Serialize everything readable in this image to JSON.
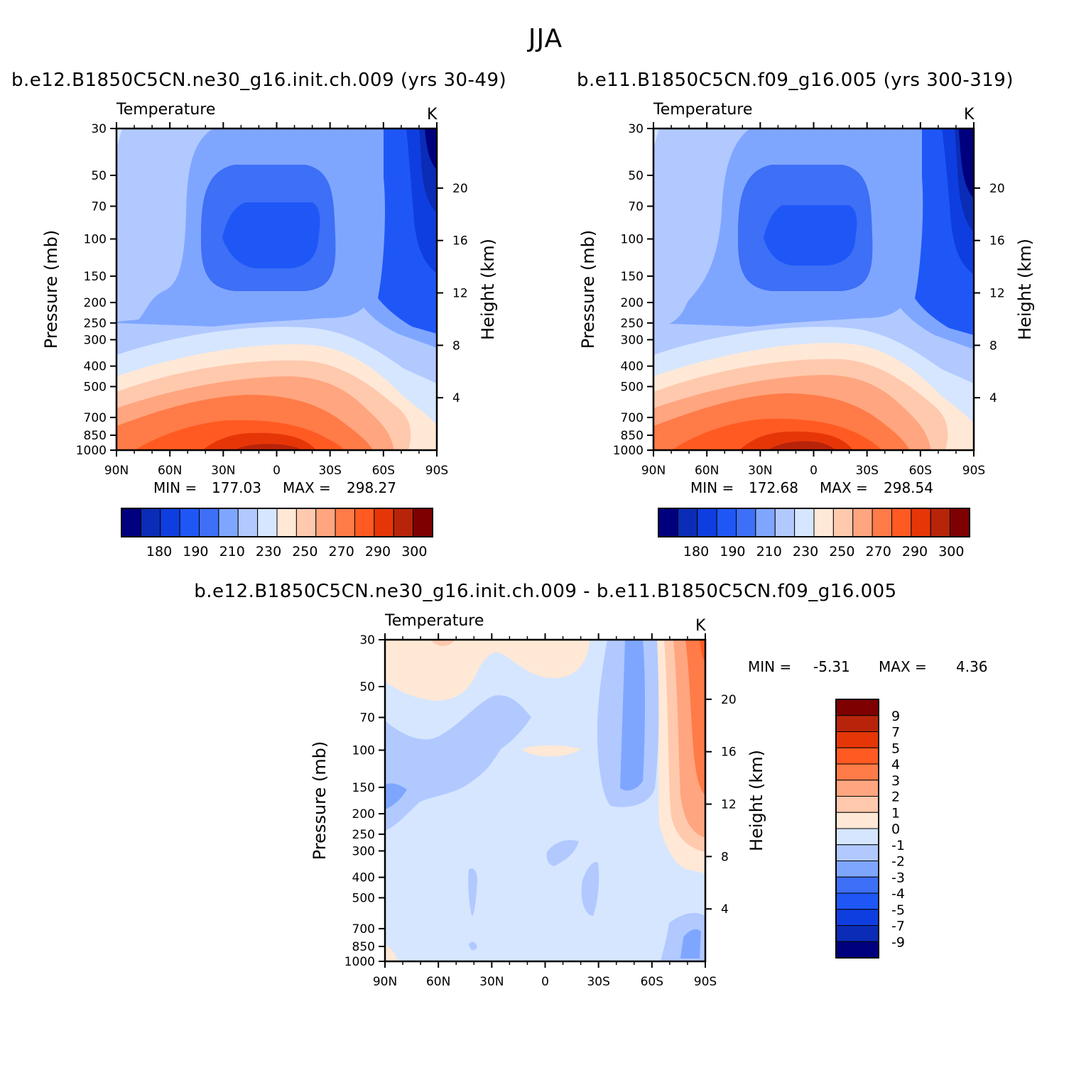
{
  "page": {
    "title": "JJA",
    "panels": [
      {
        "title": "b.e12.B1850C5CN.ne30_g16.init.ch.009 (yrs 30-49)",
        "variable": "Temperature",
        "units": "K",
        "min_label": "MIN =",
        "min": "177.03",
        "max_label": "MAX =",
        "max": "298.27"
      },
      {
        "title": "b.e11.B1850C5CN.f09_g16.005 (yrs 300-319)",
        "variable": "Temperature",
        "units": "K",
        "min_label": "MIN =",
        "min": "172.68",
        "max_label": "MAX =",
        "max": "298.54"
      },
      {
        "title": "b.e12.B1850C5CN.ne30_g16.init.ch.009 - b.e11.B1850C5CN.f09_g16.005",
        "variable": "Temperature",
        "units": "K",
        "min_label": "MIN =",
        "min": "-5.31",
        "max_label": "MAX =",
        "max": "4.36"
      }
    ]
  },
  "chart_data": [
    {
      "type": "heatmap",
      "title": "b.e12.B1850C5CN.ne30_g16.init.ch.009 (yrs 30-49)",
      "subtitle": "Temperature",
      "units": "K",
      "xlabel": "",
      "ylabel": "Pressure (mb)",
      "y2label": "Height (km)",
      "x_tick_labels": [
        "90N",
        "60N",
        "30N",
        "0",
        "30S",
        "60S",
        "90S"
      ],
      "y_tick_labels": [
        "30",
        "50",
        "70",
        "100",
        "150",
        "200",
        "250",
        "300",
        "400",
        "500",
        "700",
        "850",
        "1000"
      ],
      "y2_tick_labels": [
        "20",
        "16",
        "12",
        "8",
        "4"
      ],
      "yscale": "log",
      "colorbar_levels": [
        180,
        190,
        210,
        230,
        250,
        270,
        290,
        300
      ],
      "colorbar_colors": [
        "#00007f",
        "#0a2cb6",
        "#0f3ee0",
        "#1f57f7",
        "#3d6ff7",
        "#7fa6ff",
        "#b1c9ff",
        "#d6e6ff",
        "#ffe8d6",
        "#ffc9ae",
        "#ffa57f",
        "#ff7b48",
        "#ff5a21",
        "#e63608",
        "#b8240a",
        "#7f0000"
      ],
      "min": 177.03,
      "max": 298.27
    },
    {
      "type": "heatmap",
      "title": "b.e11.B1850C5CN.f09_g16.005 (yrs 300-319)",
      "subtitle": "Temperature",
      "units": "K",
      "xlabel": "",
      "ylabel": "Pressure (mb)",
      "y2label": "Height (km)",
      "x_tick_labels": [
        "90N",
        "60N",
        "30N",
        "0",
        "30S",
        "60S",
        "90S"
      ],
      "y_tick_labels": [
        "30",
        "50",
        "70",
        "100",
        "150",
        "200",
        "250",
        "300",
        "400",
        "500",
        "700",
        "850",
        "1000"
      ],
      "y2_tick_labels": [
        "20",
        "16",
        "12",
        "8",
        "4"
      ],
      "yscale": "log",
      "colorbar_levels": [
        180,
        190,
        210,
        230,
        250,
        270,
        290,
        300
      ],
      "colorbar_colors": [
        "#00007f",
        "#0a2cb6",
        "#0f3ee0",
        "#1f57f7",
        "#3d6ff7",
        "#7fa6ff",
        "#b1c9ff",
        "#d6e6ff",
        "#ffe8d6",
        "#ffc9ae",
        "#ffa57f",
        "#ff7b48",
        "#ff5a21",
        "#e63608",
        "#b8240a",
        "#7f0000"
      ],
      "min": 172.68,
      "max": 298.54
    },
    {
      "type": "heatmap",
      "title": "b.e12.B1850C5CN.ne30_g16.init.ch.009 - b.e11.B1850C5CN.f09_g16.005",
      "subtitle": "Temperature",
      "units": "K",
      "xlabel": "",
      "ylabel": "Pressure (mb)",
      "y2label": "Height (km)",
      "x_tick_labels": [
        "90N",
        "60N",
        "30N",
        "0",
        "30S",
        "60S",
        "90S"
      ],
      "y_tick_labels": [
        "30",
        "50",
        "70",
        "100",
        "150",
        "200",
        "250",
        "300",
        "400",
        "500",
        "700",
        "850",
        "1000"
      ],
      "y2_tick_labels": [
        "20",
        "16",
        "12",
        "8",
        "4"
      ],
      "yscale": "log",
      "colorbar_levels": [
        "9",
        "7",
        "5",
        "4",
        "3",
        "2",
        "1",
        "0",
        "-1",
        "-2",
        "-3",
        "-4",
        "-5",
        "-7",
        "-9"
      ],
      "colorbar_colors": [
        "#7f0000",
        "#b8240a",
        "#e63608",
        "#ff5a21",
        "#ff7b48",
        "#ffa57f",
        "#ffc9ae",
        "#ffe8d6",
        "#d6e6ff",
        "#b1c9ff",
        "#7fa6ff",
        "#3d6ff7",
        "#1f57f7",
        "#0f3ee0",
        "#0a2cb6",
        "#00007f"
      ],
      "min": -5.31,
      "max": 4.36
    }
  ]
}
